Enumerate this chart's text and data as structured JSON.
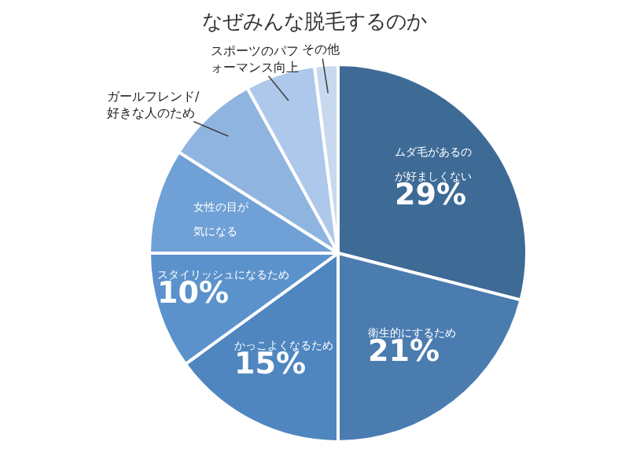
{
  "chart_data": {
    "type": "pie",
    "title": "なぜみんな脱毛するのか",
    "categories": [
      "ムダ毛があるのが好ましくない",
      "衛生的にするため",
      "かっこよくなるため",
      "スタイリッシュになるため",
      "女性の目が気になる",
      "ガールフレンド/好きな人のため",
      "スポーツのパフォーマンス向上",
      "その他"
    ],
    "values": [
      29,
      21,
      15,
      10,
      9,
      8,
      6,
      2
    ],
    "colors": [
      "#3e6a96",
      "#4a7cb0",
      "#4f86c0",
      "#5b92cc",
      "#6fa0d6",
      "#8fb4e0",
      "#adc8ea",
      "#c8d9ef"
    ],
    "value_labels": [
      "29%",
      "21%",
      "15%",
      "10%",
      null,
      null,
      null,
      null
    ],
    "legend": false
  }
}
